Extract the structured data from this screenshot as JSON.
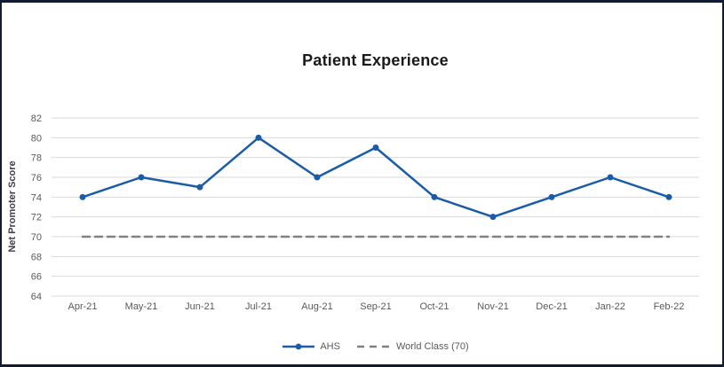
{
  "window": {
    "background": "#ffffff",
    "frame_border_color": "#111c30"
  },
  "chart_data": {
    "type": "line",
    "title": "Patient Experience",
    "xlabel": "",
    "ylabel": "Net Promoter Score",
    "categories": [
      "Apr-21",
      "May-21",
      "Jun-21",
      "Jul-21",
      "Aug-21",
      "Sep-21",
      "Oct-21",
      "Nov-21",
      "Dec-21",
      "Jan-22",
      "Feb-22"
    ],
    "series": [
      {
        "name": "AHS",
        "values": [
          74,
          76,
          75,
          80,
          76,
          79,
          74,
          72,
          74,
          76,
          74
        ],
        "color": "#1a5ca8",
        "style": "solid",
        "marker": "circle"
      },
      {
        "name": "World Class (70)",
        "values": [
          70,
          70,
          70,
          70,
          70,
          70,
          70,
          70,
          70,
          70,
          70
        ],
        "color": "#808080",
        "style": "dashed",
        "marker": "none"
      }
    ],
    "ylim": [
      64,
      82
    ],
    "ytick_step": 2,
    "grid": true,
    "gridline_color": "#d9d9d9",
    "tick_label_color": "#595959",
    "legend_position": "bottom"
  }
}
